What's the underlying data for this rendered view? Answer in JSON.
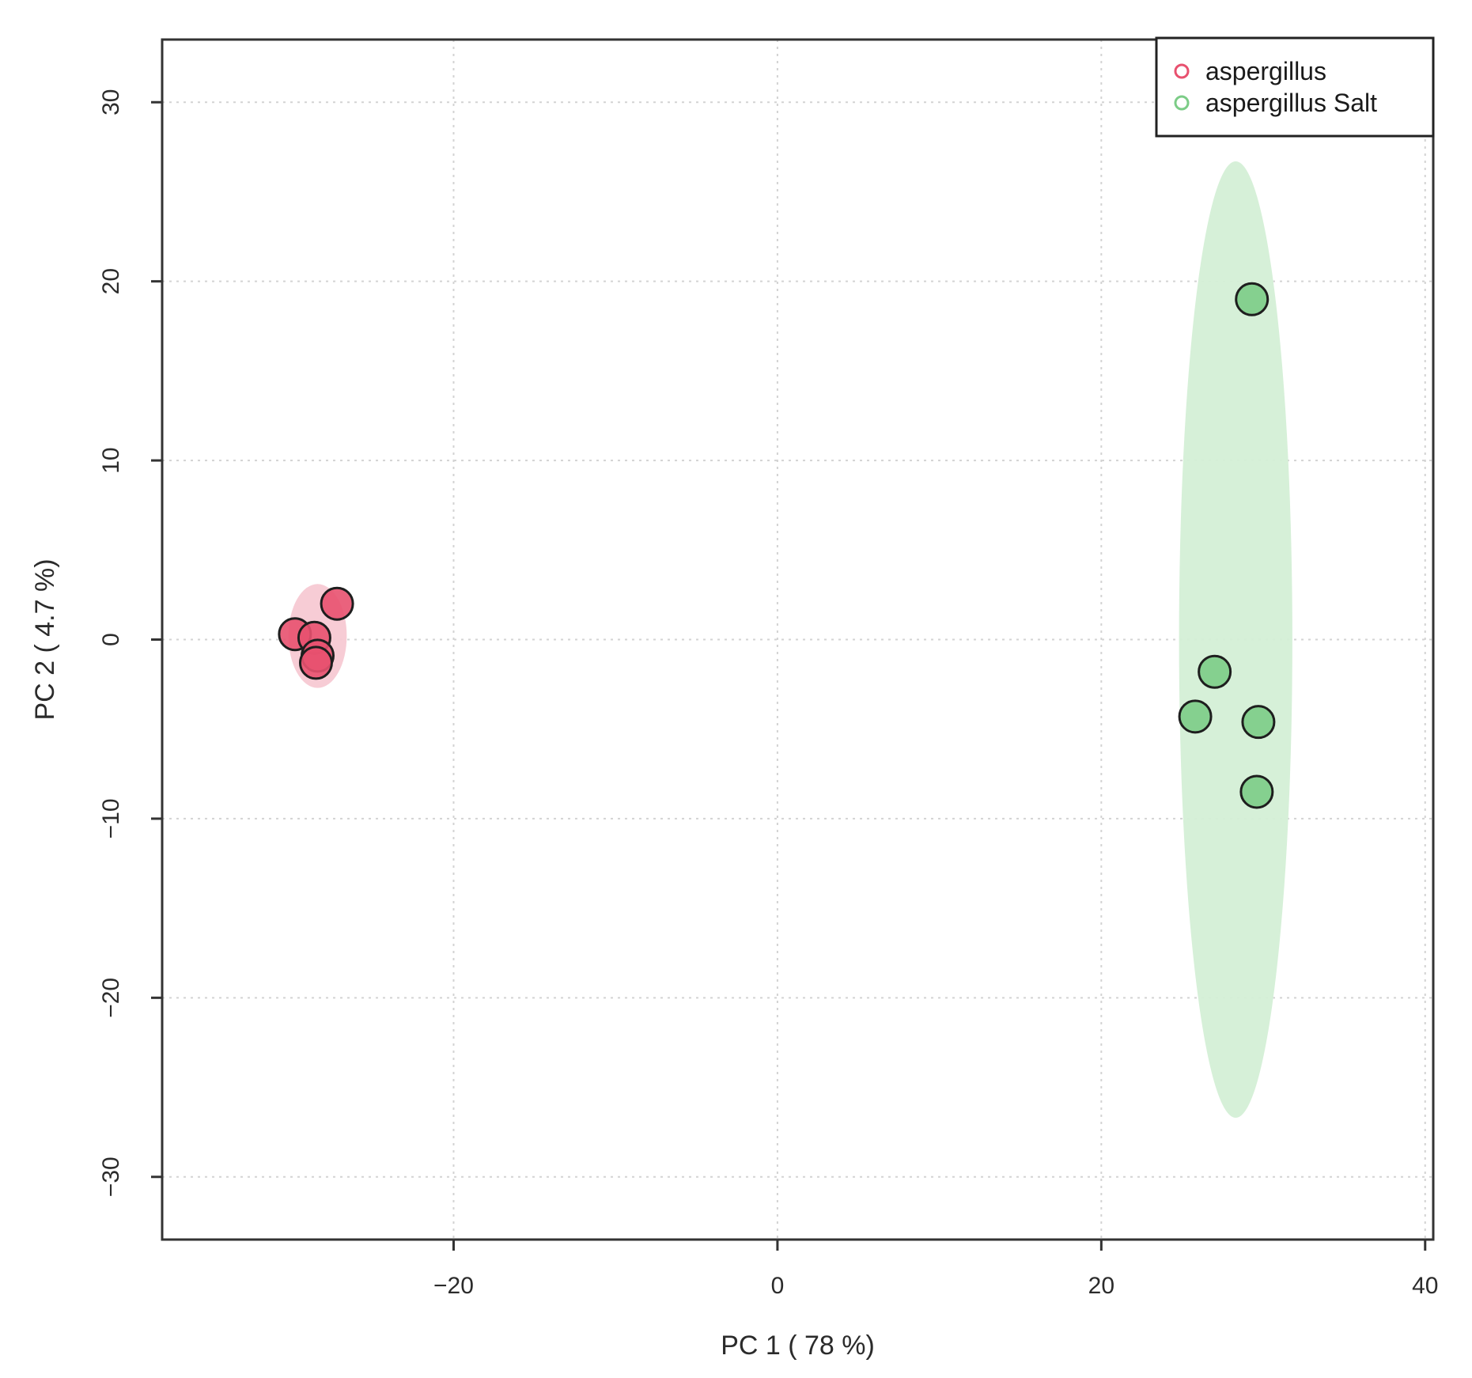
{
  "chart_data": {
    "type": "scatter",
    "title": "",
    "xlabel": "PC 1 ( 78 %)",
    "ylabel": "PC 2 ( 4.7 %)",
    "xlim": [
      -38,
      40.5
    ],
    "ylim": [
      -33.5,
      33.5
    ],
    "xticks": [
      -20,
      0,
      20,
      40
    ],
    "yticks": [
      -30,
      -20,
      -10,
      0,
      10,
      20,
      30
    ],
    "xtick_labels": [
      "−20",
      "0",
      "20",
      "40"
    ],
    "ytick_labels": [
      "−30",
      "−20",
      "−10",
      "0",
      "10",
      "20",
      "30"
    ],
    "grid": true,
    "legend_position": "top-right",
    "series": [
      {
        "name": "aspergillus",
        "color": "#e8516f",
        "ellipse_color": "#f7c9d3",
        "ellipse": {
          "cx": -28.4,
          "cy": 0.2,
          "rx": 1.8,
          "ry": 2.9
        },
        "x": [
          -29.8,
          -28.6,
          -27.2,
          -28.4,
          -28.5
        ],
        "y": [
          0.3,
          0.1,
          2.0,
          -0.9,
          -1.3
        ]
      },
      {
        "name": "aspergillus Salt",
        "color": "#7ccc87",
        "ellipse_color": "#d4efd6",
        "ellipse": {
          "cx": 28.3,
          "cy": 0.0,
          "rx": 3.5,
          "ry": 26.7
        },
        "x": [
          29.3,
          27.0,
          25.8,
          29.7,
          29.6
        ],
        "y": [
          19.0,
          -1.8,
          -4.3,
          -4.6,
          -8.5
        ]
      }
    ]
  }
}
